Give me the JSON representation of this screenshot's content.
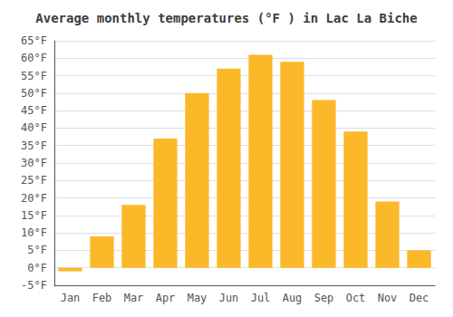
{
  "chart_data": {
    "type": "bar",
    "title": "Average monthly temperatures (°F ) in Lac La Biche",
    "categories": [
      "Jan",
      "Feb",
      "Mar",
      "Apr",
      "May",
      "Jun",
      "Jul",
      "Aug",
      "Sep",
      "Oct",
      "Nov",
      "Dec"
    ],
    "values": [
      -1,
      9,
      18,
      37,
      50,
      57,
      61,
      59,
      48,
      39,
      19,
      5
    ],
    "color": "#FBB829",
    "ylim": [
      -5,
      65
    ],
    "yticks": [
      {
        "value": -5,
        "label": "-5°F"
      },
      {
        "value": 0,
        "label": "0°F"
      },
      {
        "value": 5,
        "label": "5°F"
      },
      {
        "value": 10,
        "label": "10°F"
      },
      {
        "value": 15,
        "label": "15°F"
      },
      {
        "value": 20,
        "label": "20°F"
      },
      {
        "value": 25,
        "label": "25°F"
      },
      {
        "value": 30,
        "label": "30°F"
      },
      {
        "value": 35,
        "label": "35°F"
      },
      {
        "value": 40,
        "label": "40°F"
      },
      {
        "value": 45,
        "label": "45°F"
      },
      {
        "value": 50,
        "label": "50°F"
      },
      {
        "value": 55,
        "label": "55°F"
      },
      {
        "value": 60,
        "label": "60°F"
      },
      {
        "value": 65,
        "label": "65°F"
      }
    ],
    "grid": true
  }
}
